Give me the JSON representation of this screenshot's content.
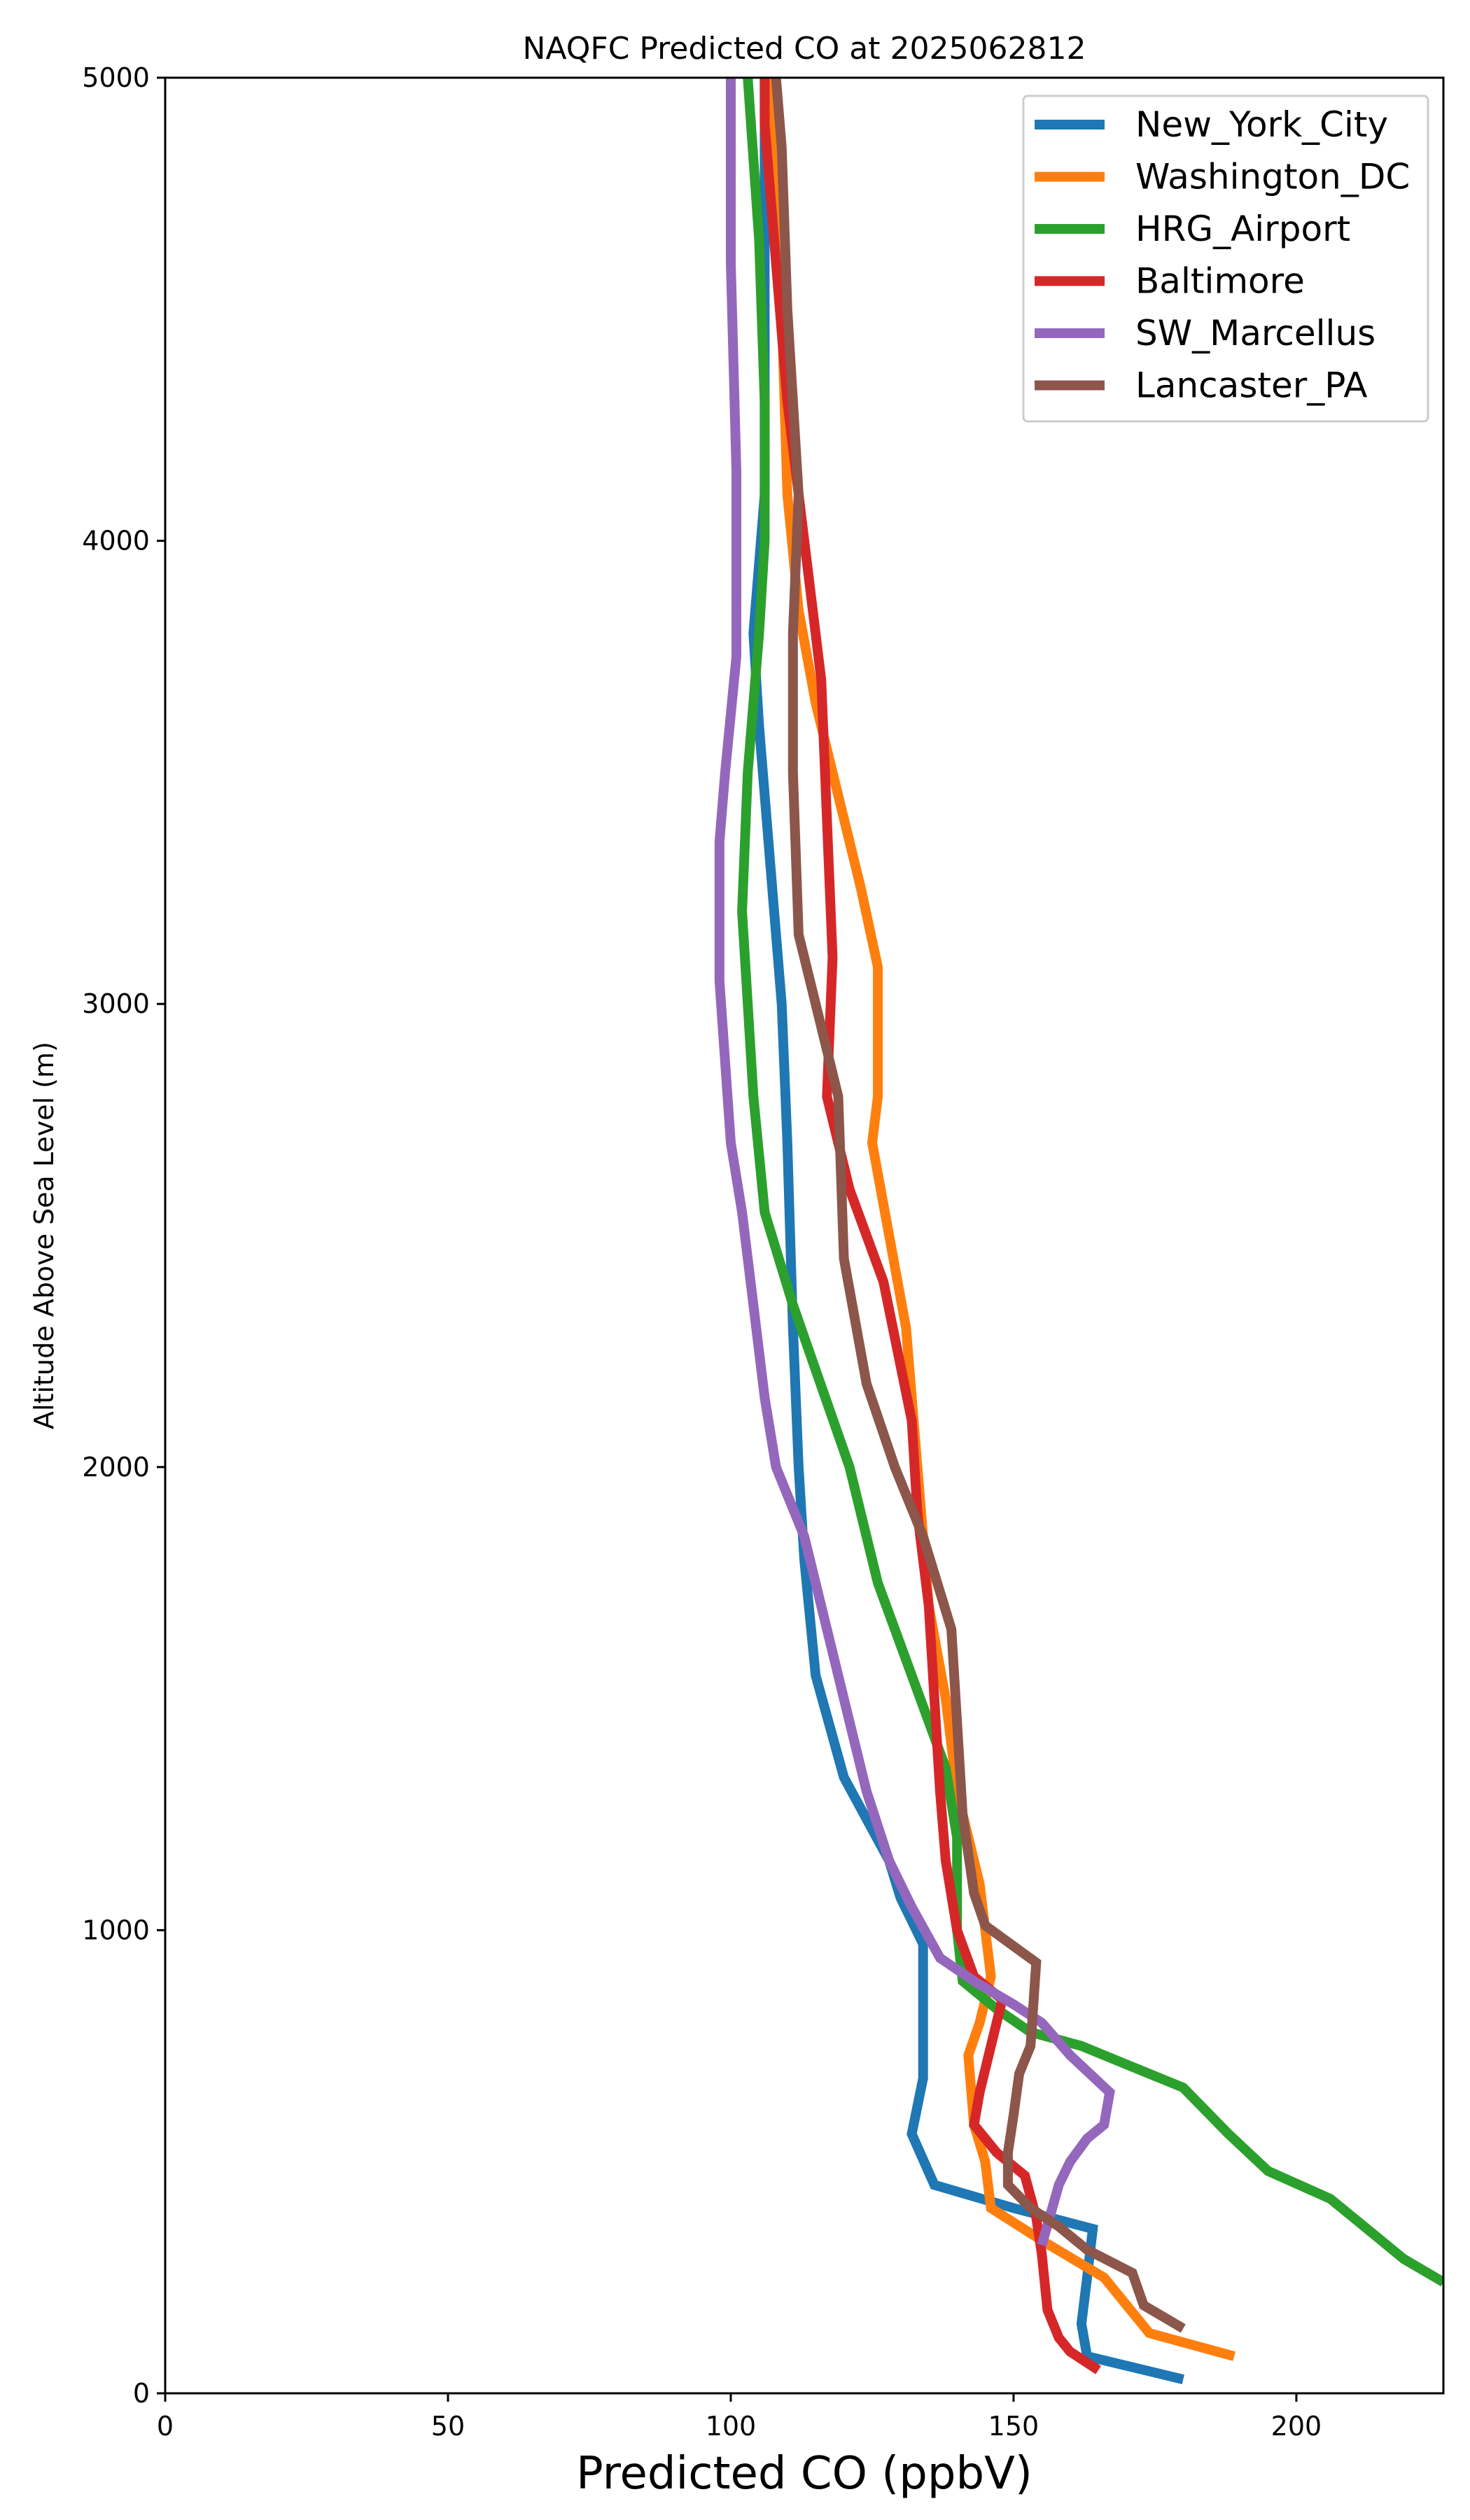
{
  "chart_data": {
    "type": "line",
    "title": "NAQFC Predicted CO at 2025062812",
    "xlabel": "Predicted CO (ppbV)",
    "ylabel": "Altitude Above Sea Level (m)",
    "xlim": [
      0,
      226
    ],
    "ylim": [
      0,
      5000
    ],
    "xticks": [
      0,
      50,
      100,
      150,
      200
    ],
    "yticks": [
      0,
      1000,
      2000,
      3000,
      4000,
      5000
    ],
    "grid": false,
    "legend_position": "top-right",
    "series": [
      {
        "name": "New_York_City",
        "color": "#1f77b4",
        "points": [
          [
            180,
            30
          ],
          [
            163,
            80
          ],
          [
            162,
            150
          ],
          [
            163,
            250
          ],
          [
            164,
            355
          ],
          [
            150,
            400
          ],
          [
            136,
            450
          ],
          [
            132,
            560
          ],
          [
            134,
            680
          ],
          [
            134,
            800
          ],
          [
            134,
            970
          ],
          [
            130,
            1070
          ],
          [
            128,
            1150
          ],
          [
            120,
            1330
          ],
          [
            115,
            1550
          ],
          [
            113,
            1800
          ],
          [
            112,
            2000
          ],
          [
            111,
            2300
          ],
          [
            110,
            2700
          ],
          [
            109,
            3000
          ],
          [
            107,
            3300
          ],
          [
            105,
            3600
          ],
          [
            104,
            3800
          ],
          [
            106,
            4100
          ],
          [
            106,
            4300
          ],
          [
            106,
            4600
          ],
          [
            106,
            5000
          ]
        ]
      },
      {
        "name": "Washington_DC",
        "color": "#ff7f0e",
        "points": [
          [
            189,
            80
          ],
          [
            174,
            130
          ],
          [
            166,
            250
          ],
          [
            155,
            330
          ],
          [
            146,
            400
          ],
          [
            145,
            500
          ],
          [
            143,
            580
          ],
          [
            142,
            730
          ],
          [
            144,
            800
          ],
          [
            146,
            900
          ],
          [
            144,
            1100
          ],
          [
            140,
            1300
          ],
          [
            138,
            1500
          ],
          [
            135,
            1700
          ],
          [
            133,
            2000
          ],
          [
            131,
            2300
          ],
          [
            128,
            2500
          ],
          [
            125,
            2700
          ],
          [
            126,
            2800
          ],
          [
            126,
            3080
          ],
          [
            123,
            3250
          ],
          [
            119,
            3450
          ],
          [
            115,
            3650
          ],
          [
            112,
            3850
          ],
          [
            110,
            4100
          ],
          [
            109,
            4500
          ],
          [
            108,
            4800
          ],
          [
            107,
            5000
          ]
        ]
      },
      {
        "name": "HRG_Airport",
        "color": "#2ca02c",
        "points": [
          [
            226,
            240
          ],
          [
            219,
            290
          ],
          [
            213,
            350
          ],
          [
            206,
            420
          ],
          [
            195,
            480
          ],
          [
            188,
            560
          ],
          [
            180,
            660
          ],
          [
            170,
            710
          ],
          [
            162,
            750
          ],
          [
            153,
            780
          ],
          [
            147,
            830
          ],
          [
            141,
            890
          ],
          [
            140,
            1000
          ],
          [
            140,
            1200
          ],
          [
            138,
            1350
          ],
          [
            132,
            1550
          ],
          [
            126,
            1750
          ],
          [
            121,
            2000
          ],
          [
            111,
            2350
          ],
          [
            106,
            2550
          ],
          [
            104,
            2800
          ],
          [
            103,
            3000
          ],
          [
            102,
            3200
          ],
          [
            103,
            3500
          ],
          [
            105,
            3800
          ],
          [
            106,
            4000
          ],
          [
            106,
            4300
          ],
          [
            105,
            4650
          ],
          [
            103,
            5000
          ]
        ]
      },
      {
        "name": "Baltimore",
        "color": "#d62728",
        "points": [
          [
            165,
            50
          ],
          [
            160,
            90
          ],
          [
            158,
            120
          ],
          [
            156,
            180
          ],
          [
            155,
            300
          ],
          [
            154,
            380
          ],
          [
            152,
            470
          ],
          [
            147,
            520
          ],
          [
            143,
            580
          ],
          [
            144,
            650
          ],
          [
            146,
            750
          ],
          [
            148,
            850
          ],
          [
            143,
            900
          ],
          [
            140,
            1000
          ],
          [
            138,
            1150
          ],
          [
            137,
            1300
          ],
          [
            136,
            1500
          ],
          [
            135,
            1700
          ],
          [
            133,
            1900
          ],
          [
            132,
            2100
          ],
          [
            127,
            2400
          ],
          [
            121,
            2600
          ],
          [
            117,
            2800
          ],
          [
            118,
            3100
          ],
          [
            117,
            3400
          ],
          [
            116,
            3700
          ],
          [
            113,
            4000
          ],
          [
            110,
            4300
          ],
          [
            108,
            4600
          ],
          [
            106,
            4900
          ],
          [
            106,
            5000
          ]
        ]
      },
      {
        "name": "SW_Marcellus",
        "color": "#9467bd",
        "points": [
          [
            155,
            320
          ],
          [
            158,
            450
          ],
          [
            160,
            500
          ],
          [
            163,
            550
          ],
          [
            166,
            580
          ],
          [
            167,
            650
          ],
          [
            160,
            730
          ],
          [
            155,
            800
          ],
          [
            150,
            840
          ],
          [
            143,
            890
          ],
          [
            137,
            940
          ],
          [
            132,
            1050
          ],
          [
            128,
            1150
          ],
          [
            124,
            1300
          ],
          [
            121,
            1450
          ],
          [
            117,
            1650
          ],
          [
            113,
            1850
          ],
          [
            108,
            2000
          ],
          [
            106,
            2150
          ],
          [
            104,
            2350
          ],
          [
            102,
            2550
          ],
          [
            100,
            2700
          ],
          [
            98,
            3050
          ],
          [
            98,
            3350
          ],
          [
            99,
            3500
          ],
          [
            101,
            3750
          ],
          [
            101,
            4150
          ],
          [
            100,
            4600
          ],
          [
            100,
            5000
          ]
        ]
      },
      {
        "name": "Lancaster_PA",
        "color": "#8c564b",
        "points": [
          [
            180,
            140
          ],
          [
            173,
            190
          ],
          [
            171,
            260
          ],
          [
            163,
            310
          ],
          [
            158,
            360
          ],
          [
            153,
            400
          ],
          [
            149,
            450
          ],
          [
            149,
            520
          ],
          [
            150,
            600
          ],
          [
            151,
            690
          ],
          [
            153,
            750
          ],
          [
            154,
            930
          ],
          [
            145,
            1010
          ],
          [
            143,
            1080
          ],
          [
            141,
            1250
          ],
          [
            140,
            1450
          ],
          [
            139,
            1650
          ],
          [
            134,
            1850
          ],
          [
            129,
            2000
          ],
          [
            124,
            2180
          ],
          [
            120,
            2450
          ],
          [
            119,
            2800
          ],
          [
            115,
            3000
          ],
          [
            112,
            3150
          ],
          [
            111,
            3500
          ],
          [
            111,
            3800
          ],
          [
            112,
            4100
          ],
          [
            110,
            4500
          ],
          [
            109,
            4850
          ],
          [
            108,
            5000
          ]
        ]
      }
    ]
  }
}
